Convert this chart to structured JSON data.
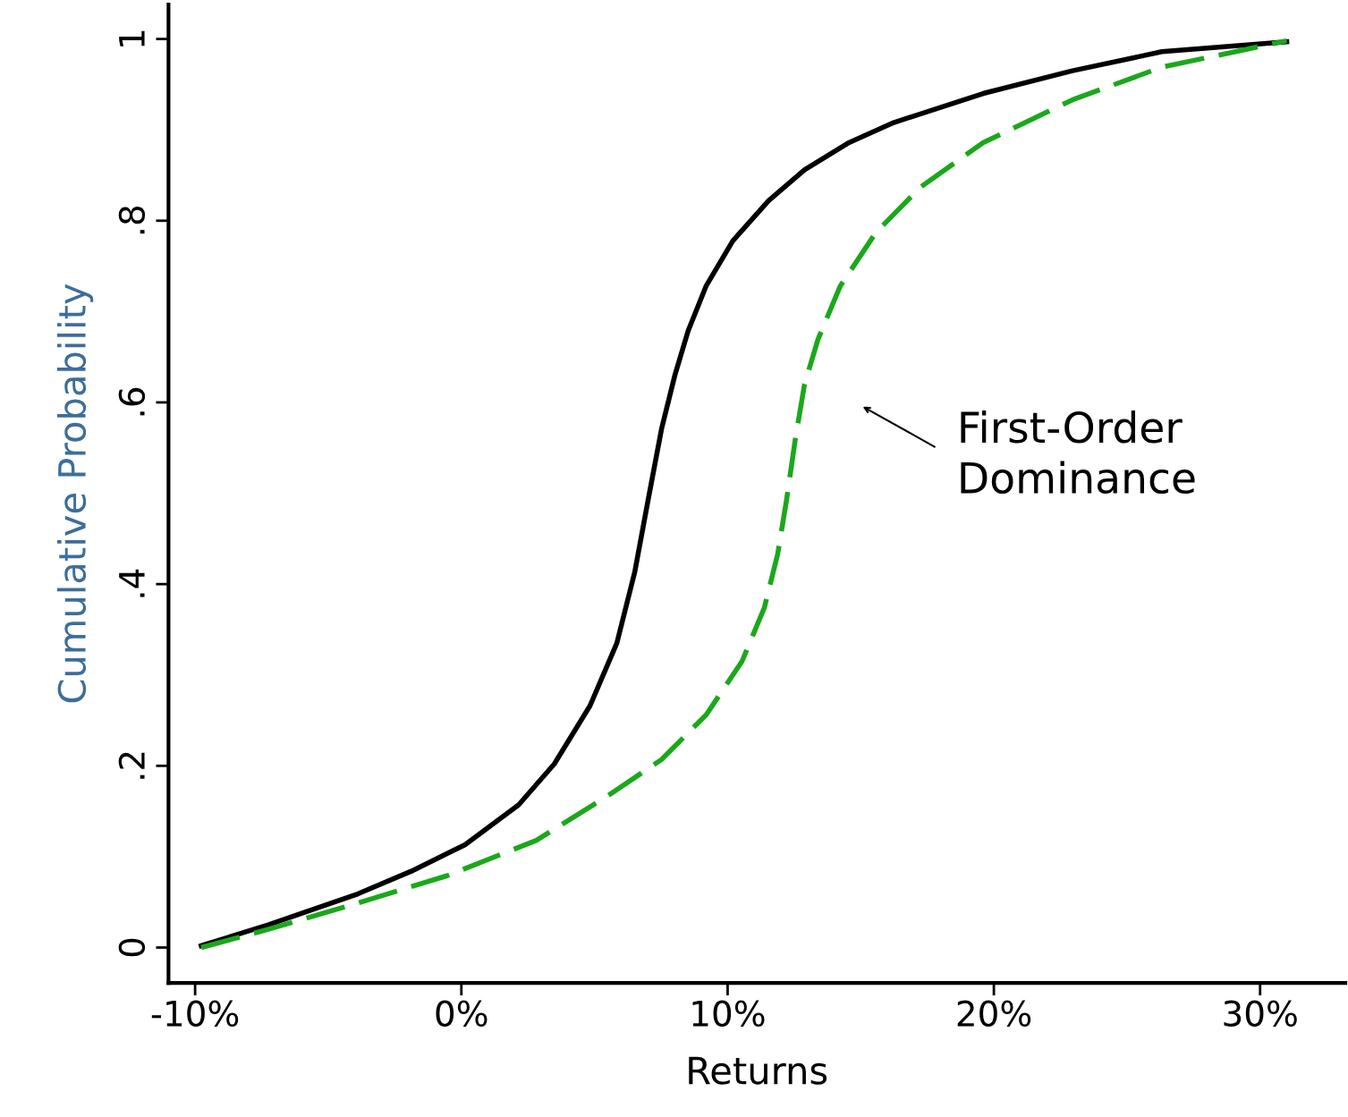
{
  "chart_data": {
    "type": "line",
    "xlabel": "Returns",
    "ylabel": "Cumulative Probability",
    "xlim": [
      -11.0,
      33.2
    ],
    "ylim": [
      -0.039,
      1.038
    ],
    "xticks": [
      {
        "value": -10,
        "label": "-10%"
      },
      {
        "value": 0,
        "label": "0%"
      },
      {
        "value": 10,
        "label": "10%"
      },
      {
        "value": 20,
        "label": "20%"
      },
      {
        "value": 30,
        "label": "30%"
      }
    ],
    "yticks": [
      0,
      {
        "value": 0.2,
        "label": ".2"
      },
      {
        "value": 0.4,
        "label": ".4"
      },
      {
        "value": 0.6,
        "label": ".6"
      },
      {
        "value": 0.8,
        "label": ".8"
      },
      1
    ],
    "grid": false,
    "legend": false,
    "series": [
      {
        "color": "#000000",
        "line_style": "solid",
        "x": [
          -9.77,
          -7.25,
          -3.89,
          -1.88,
          0.13,
          2.15,
          3.49,
          4.83,
          5.84,
          6.51,
          7.01,
          7.52,
          8.02,
          8.52,
          9.19,
          10.2,
          11.54,
          12.89,
          14.56,
          16.24,
          19.6,
          22.95,
          26.31,
          31.0
        ],
        "values": [
          0.002,
          0.025,
          0.059,
          0.084,
          0.113,
          0.157,
          0.202,
          0.266,
          0.335,
          0.413,
          0.492,
          0.571,
          0.63,
          0.679,
          0.728,
          0.778,
          0.822,
          0.856,
          0.886,
          0.908,
          0.94,
          0.965,
          0.986,
          0.997
        ]
      },
      {
        "color": "#1aa81a",
        "line_style": "dashed",
        "x": [
          -9.77,
          -7.25,
          -3.89,
          -0.54,
          2.82,
          5.5,
          7.52,
          9.19,
          10.54,
          11.38,
          11.88,
          12.21,
          12.55,
          12.89,
          13.39,
          14.23,
          15.57,
          17.25,
          19.6,
          22.95,
          26.31,
          31.0
        ],
        "values": [
          0,
          0.02,
          0.049,
          0.079,
          0.118,
          0.167,
          0.207,
          0.256,
          0.315,
          0.374,
          0.433,
          0.492,
          0.561,
          0.62,
          0.669,
          0.728,
          0.787,
          0.837,
          0.886,
          0.933,
          0.969,
          0.998
        ]
      }
    ],
    "annotations": [
      "First-Order\nDominance"
    ]
  }
}
